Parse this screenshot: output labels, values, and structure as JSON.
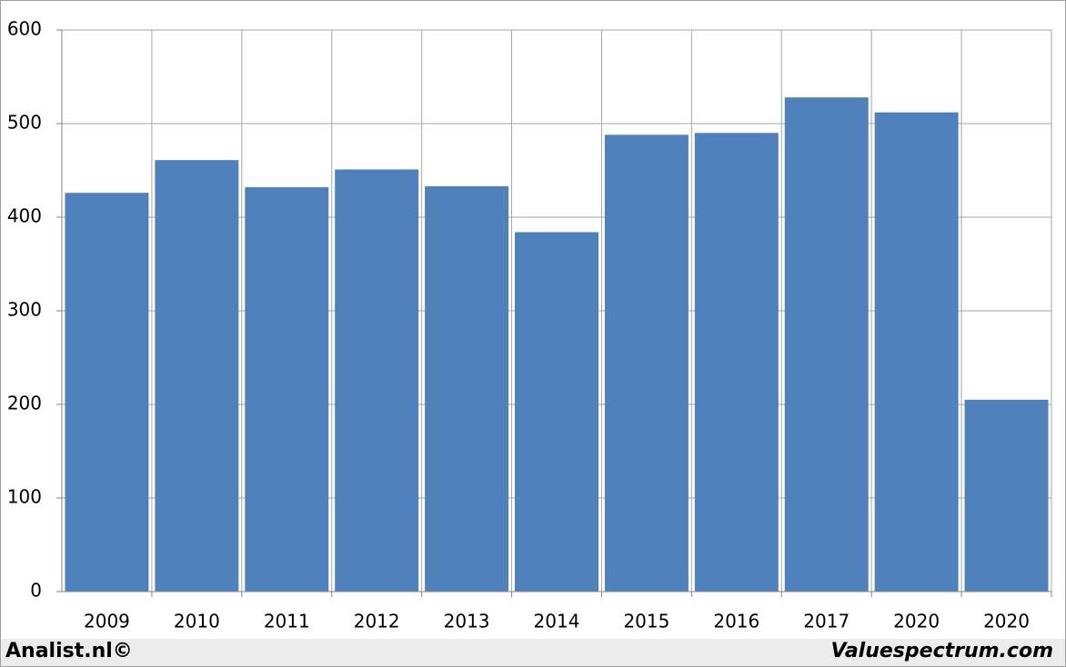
{
  "chart_data": {
    "type": "bar",
    "categories": [
      "2009",
      "2010",
      "2011",
      "2012",
      "2013",
      "2014",
      "2015",
      "2016",
      "2017",
      "2020",
      "2020"
    ],
    "values": [
      426,
      461,
      432,
      451,
      433,
      384,
      488,
      490,
      528,
      512,
      205
    ],
    "color": "#4f81bd",
    "ylim": [
      0,
      600
    ],
    "yticks": [
      0,
      100,
      200,
      300,
      400,
      500,
      600
    ],
    "grid": true,
    "footer_left": "Analist.nl©",
    "footer_right": "Valuespectrum.com"
  }
}
